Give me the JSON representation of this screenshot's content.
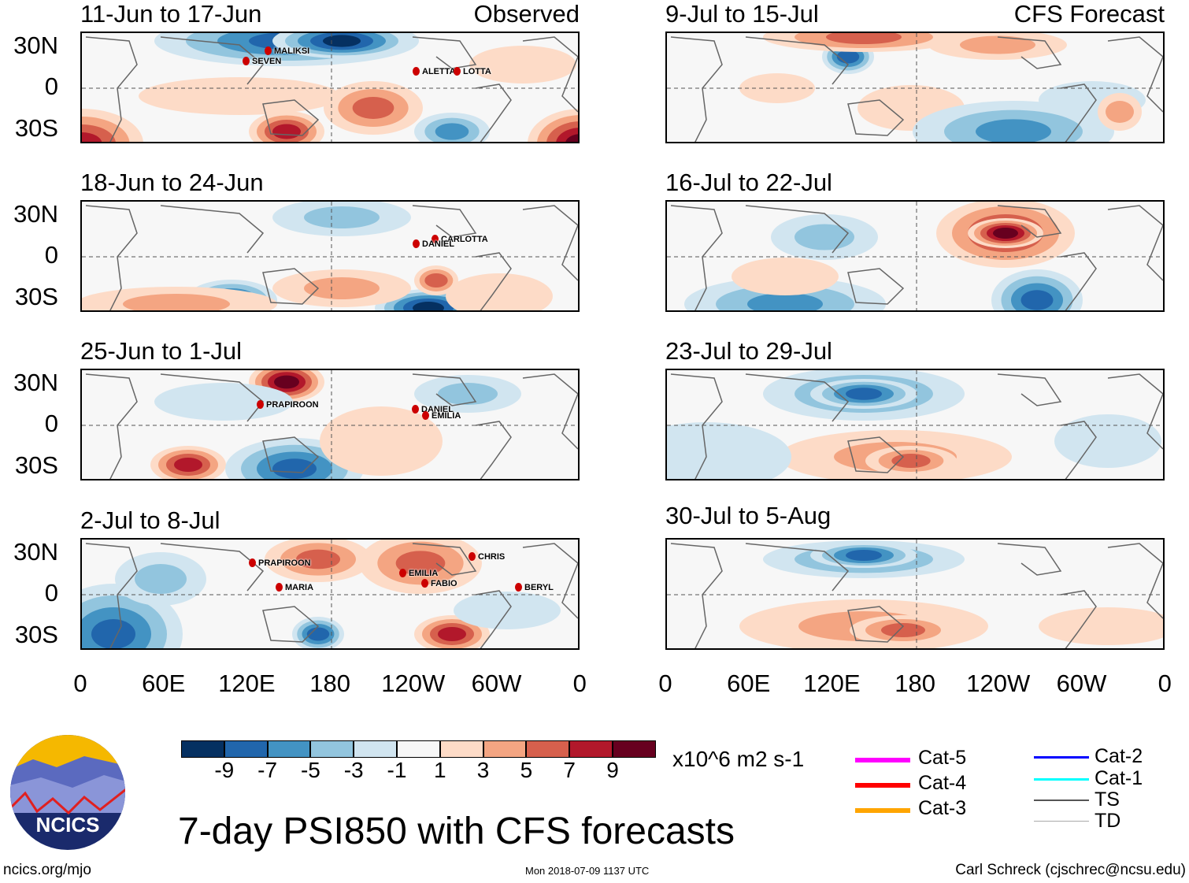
{
  "chart_data": {
    "type": "heatmap",
    "title": "7-day PSI850 with CFS forecasts",
    "units": "x10^6 m2 s-1",
    "colorbar": {
      "ticks": [
        "-9",
        "-7",
        "-5",
        "-3",
        "-1",
        "1",
        "3",
        "5",
        "7",
        "9"
      ],
      "colors": [
        "#053061",
        "#2166ac",
        "#4393c3",
        "#92c5de",
        "#d1e5f0",
        "#f7f7f7",
        "#fddbc7",
        "#f4a582",
        "#d6604d",
        "#b2182b",
        "#67001f"
      ]
    },
    "y_ticks": [
      "30N",
      "0",
      "30S"
    ],
    "x_ticks": [
      "0",
      "60E",
      "120E",
      "180",
      "120W",
      "60W",
      "0"
    ],
    "columns": [
      {
        "label": "Observed"
      },
      {
        "label": "CFS Forecast"
      }
    ],
    "panels": [
      {
        "title": "11-Jun to 17-Jun",
        "storms": [
          "MALIKSI",
          "SEVEN",
          "ALETTA",
          "LOTTA"
        ]
      },
      {
        "title": "18-Jun to 24-Jun",
        "storms": [
          "CARLOTTA",
          "DANIEL"
        ]
      },
      {
        "title": "25-Jun to 1-Jul",
        "storms": [
          "PRAPIROON",
          "DANIEL",
          "EMILIA"
        ]
      },
      {
        "title": "2-Jul to 8-Jul",
        "storms": [
          "PRAPIROON",
          "MARIA",
          "EMILIA",
          "FABIO",
          "CHRIS",
          "BERYL"
        ]
      },
      {
        "title": "9-Jul to 15-Jul",
        "storms": []
      },
      {
        "title": "16-Jul to 22-Jul",
        "storms": []
      },
      {
        "title": "23-Jul to 29-Jul",
        "storms": []
      },
      {
        "title": "30-Jul to 5-Aug",
        "storms": []
      }
    ]
  },
  "legend": {
    "items": [
      "Cat-5",
      "Cat-4",
      "Cat-3",
      "Cat-2",
      "Cat-1",
      "TS",
      "TD"
    ],
    "colors": [
      "#ff00ff",
      "#ff0000",
      "#ffa500",
      "#0000ff",
      "#00ffff",
      "#555555",
      "#aaaaaa"
    ]
  },
  "logo": {
    "text": "NCICS"
  },
  "footer": {
    "url": "ncics.org/mjo",
    "timestamp": "Mon 2018-07-09 1137 UTC",
    "author": "Carl Schreck (cjschrec@ncsu.edu)"
  }
}
